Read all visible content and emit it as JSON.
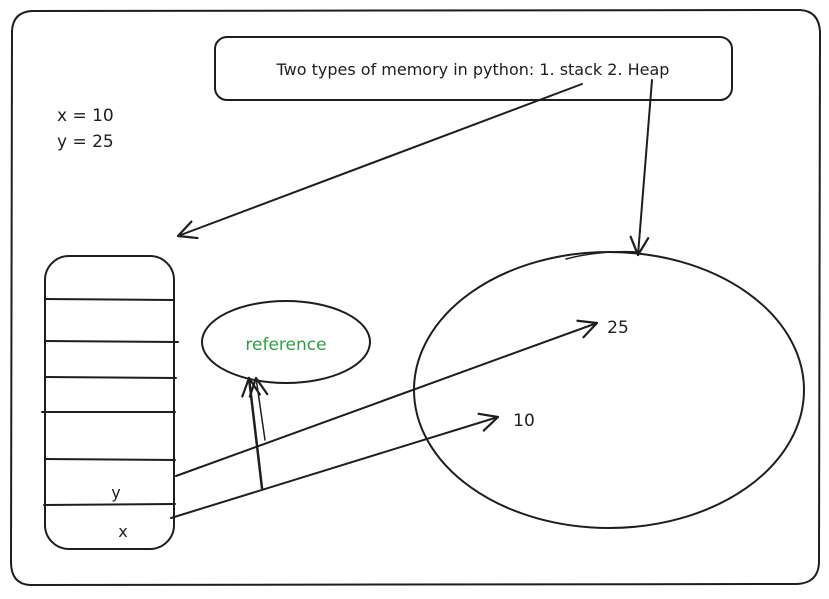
{
  "title_note": "Two types of memory in python: 1. stack 2. Heap",
  "code": {
    "line1": "x = 10",
    "line2": "y = 25"
  },
  "stack": {
    "slot_y_label": "y",
    "slot_x_label": "x"
  },
  "reference_label": "reference",
  "heap": {
    "value_25": "25",
    "value_10": "10"
  },
  "colors": {
    "ink": "#1e1e1e",
    "reference_text": "#2f9e44",
    "background": "#ffffff"
  }
}
